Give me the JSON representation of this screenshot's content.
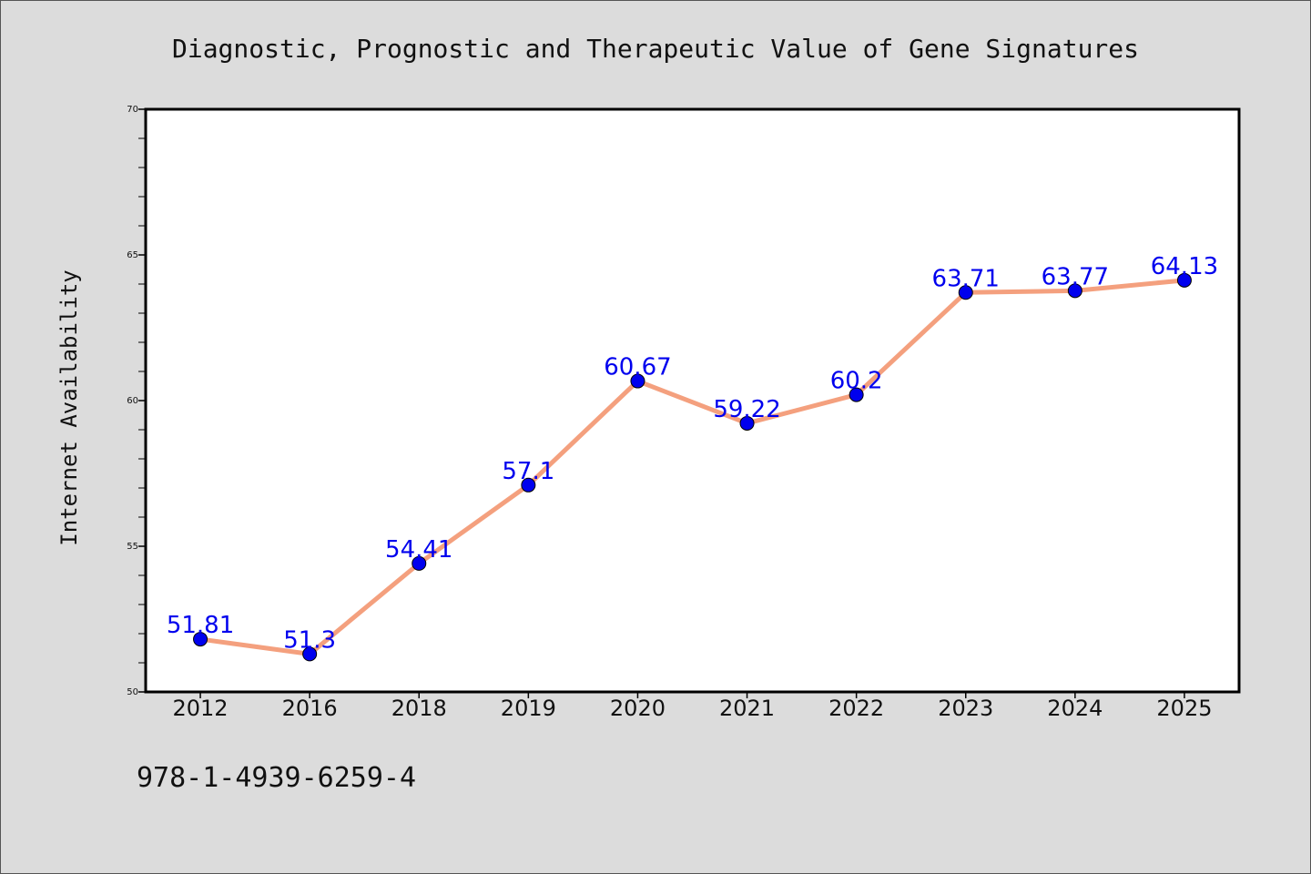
{
  "chart_data": {
    "type": "line",
    "title": "Diagnostic, Prognostic and Therapeutic Value of Gene Signatures",
    "xlabel": "",
    "ylabel": "Internet Availability",
    "categories": [
      "2012",
      "2016",
      "2018",
      "2019",
      "2020",
      "2021",
      "2022",
      "2023",
      "2024",
      "2025"
    ],
    "series": [
      {
        "values": [
          51.81,
          51.3,
          54.41,
          57.1,
          60.67,
          59.22,
          60.2,
          63.71,
          63.77,
          64.13
        ],
        "labels": [
          "51.81",
          "51.3",
          "54.41",
          "57.1",
          "60.67",
          "59.22",
          "60.2",
          "63.71",
          "63.77",
          "64.13"
        ],
        "line_color": "#f4a07e",
        "marker_color": "#0000ee"
      }
    ],
    "ylim": [
      50,
      70
    ],
    "yticks": [
      "50",
      "55",
      "60",
      "65",
      "70"
    ],
    "grid": false,
    "legend": "none"
  },
  "footer_text": "978-1-4939-6259-4",
  "colors": {
    "background": "#dcdcdc",
    "plot_background": "#ffffff",
    "data_label": "#0000ee"
  }
}
